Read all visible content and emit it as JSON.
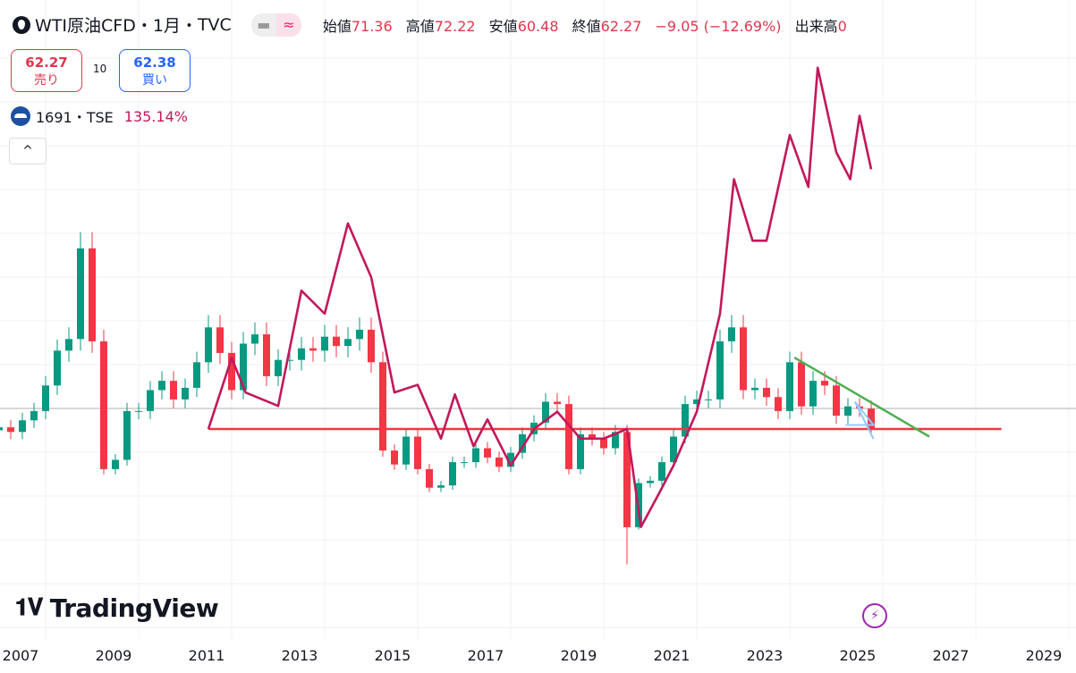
{
  "header": {
    "symbol": "WTI原油CFD",
    "interval": "1月",
    "exchange": "TVC",
    "sep": "・",
    "ohlc": [
      {
        "label": "始値",
        "value": "71.36"
      },
      {
        "label": "高値",
        "value": "72.22"
      },
      {
        "label": "安値",
        "value": "60.48"
      },
      {
        "label": "終値",
        "value": "62.27"
      }
    ],
    "change": "−9.05 (−12.69%)",
    "volume_label": "出来高",
    "volume": "0"
  },
  "trade": {
    "sell_price": "62.27",
    "sell_label": "売り",
    "quantity": "10",
    "buy_price": "62.38",
    "buy_label": "買い"
  },
  "compare": {
    "symbol": "1691・TSE",
    "value": "135.14%"
  },
  "logo": "TradingView",
  "colors": {
    "up": "#089981",
    "down": "#f23645",
    "compare_line": "#c2185b",
    "hline": "#f23645",
    "trendline": "#4caf50",
    "small_trend": "#90caf9"
  },
  "chart_data": {
    "type": "candlestick",
    "x_tick_labels": [
      "2007",
      "2009",
      "2011",
      "2013",
      "2015",
      "2017",
      "2019",
      "2021",
      "2023",
      "2025",
      "2027",
      "2029"
    ],
    "price_series_quarterly_close": {
      "start": "2006-Q3",
      "values": [
        63,
        61,
        66,
        70,
        81,
        96,
        101,
        140,
        100,
        45,
        49,
        70,
        70,
        79,
        83,
        75,
        80,
        91,
        106,
        95,
        79,
        99,
        103,
        85,
        92,
        92,
        97,
        96,
        102,
        98,
        101,
        105,
        91,
        53,
        47,
        59,
        45,
        37,
        38,
        48,
        48,
        54,
        50,
        46,
        52,
        60,
        65,
        74,
        73,
        45,
        60,
        58,
        54,
        61,
        20,
        39,
        40,
        48,
        59,
        73,
        75,
        75,
        100,
        106,
        79,
        80,
        76,
        70,
        91,
        72,
        83,
        81,
        68,
        72,
        71,
        62.27
      ]
    },
    "compare_series": {
      "name": "1691・TSE",
      "unit": "%",
      "points": [
        [
          2011.0,
          0
        ],
        [
          2011.5,
          37
        ],
        [
          2011.8,
          19
        ],
        [
          2012.5,
          12
        ],
        [
          2013.0,
          72
        ],
        [
          2013.5,
          60
        ],
        [
          2014.0,
          107
        ],
        [
          2014.5,
          79
        ],
        [
          2015.0,
          19
        ],
        [
          2015.5,
          23
        ],
        [
          2016.0,
          -5
        ],
        [
          2016.3,
          18
        ],
        [
          2016.7,
          -9
        ],
        [
          2017.0,
          5
        ],
        [
          2017.5,
          -19
        ],
        [
          2018.0,
          0
        ],
        [
          2018.5,
          9
        ],
        [
          2019.0,
          -5
        ],
        [
          2019.5,
          -5
        ],
        [
          2020.0,
          0
        ],
        [
          2020.3,
          -51
        ],
        [
          2020.7,
          -33
        ],
        [
          2021.0,
          -19
        ],
        [
          2021.5,
          9
        ],
        [
          2022.0,
          60
        ],
        [
          2022.3,
          130
        ],
        [
          2022.7,
          98
        ],
        [
          2023.0,
          98
        ],
        [
          2023.5,
          153
        ],
        [
          2023.9,
          126
        ],
        [
          2024.1,
          188
        ],
        [
          2024.5,
          144
        ],
        [
          2024.8,
          130
        ],
        [
          2025.0,
          163
        ],
        [
          2025.25,
          135.14
        ]
      ]
    },
    "horizontal_line": 62.27,
    "trendline": [
      [
        2023.6,
        93
      ],
      [
        2026.5,
        59
      ]
    ]
  }
}
